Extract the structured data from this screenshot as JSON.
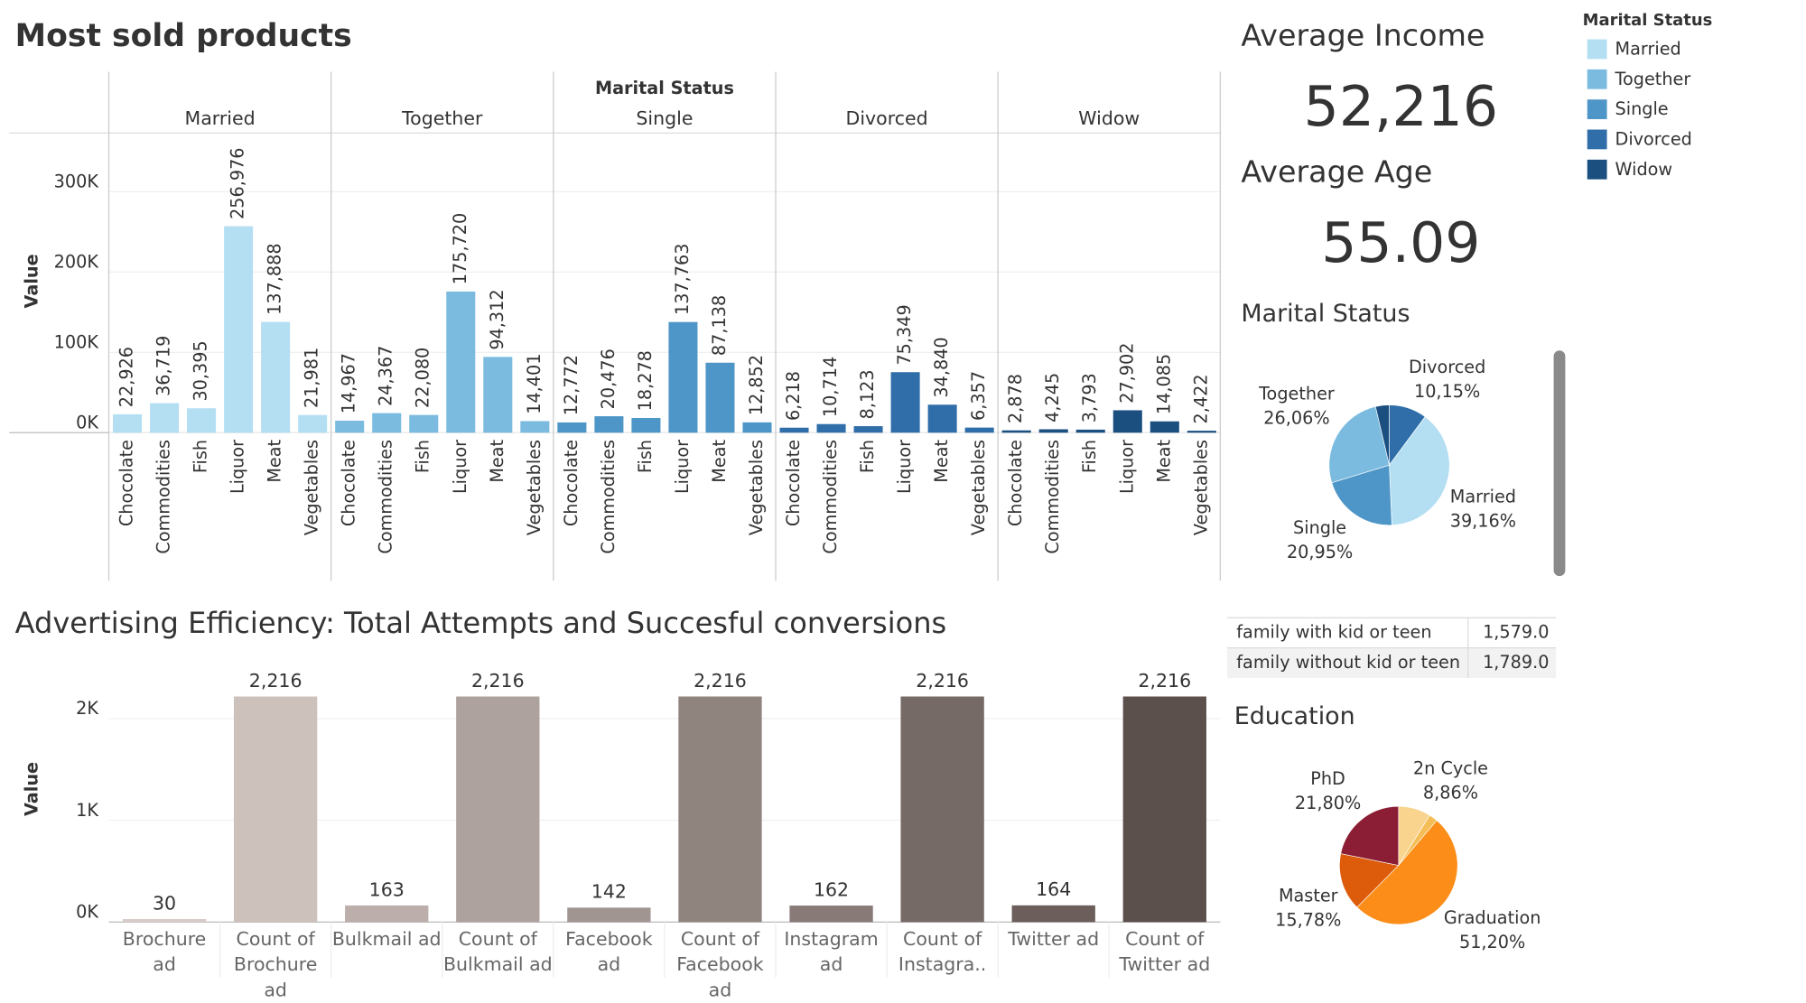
{
  "chart_data": [
    {
      "type": "bar",
      "title": "Most sold products",
      "y_label": "Value",
      "facet_title": "Marital Status",
      "legend_title": "Marital Status",
      "grid": true,
      "categories": [
        "Chocolate",
        "Commodities",
        "Fish",
        "Liquor",
        "Meat",
        "Vegetables"
      ],
      "ylim": [
        0,
        373000
      ],
      "yticks": [
        {
          "value": 0,
          "label": "0K"
        },
        {
          "value": 100000,
          "label": "100K"
        },
        {
          "value": 200000,
          "label": "200K"
        },
        {
          "value": 300000,
          "label": "300K"
        }
      ],
      "series": [
        {
          "name": "Married",
          "color": "#b4dff3",
          "values": [
            22926,
            36719,
            30395,
            256976,
            137888,
            21981
          ],
          "value_labels": [
            "22,926",
            "36,719",
            "30,395",
            "256,976",
            "137,888",
            "21,981"
          ]
        },
        {
          "name": "Together",
          "color": "#7bbbe0",
          "values": [
            14967,
            24367,
            22080,
            175720,
            94312,
            14401
          ],
          "value_labels": [
            "14,967",
            "24,367",
            "22,080",
            "175,720",
            "94,312",
            "14,401"
          ]
        },
        {
          "name": "Single",
          "color": "#4f96c8",
          "values": [
            12772,
            20476,
            18278,
            137763,
            87138,
            12852
          ],
          "value_labels": [
            "12,772",
            "20,476",
            "18,278",
            "137,763",
            "87,138",
            "12,852"
          ]
        },
        {
          "name": "Divorced",
          "color": "#2f6ea8",
          "values": [
            6218,
            10714,
            8123,
            75349,
            34840,
            6357
          ],
          "value_labels": [
            "6,218",
            "10,714",
            "8,123",
            "75,349",
            "34,840",
            "6,357"
          ]
        },
        {
          "name": "Widow",
          "color": "#1a4f80",
          "values": [
            2878,
            4245,
            3793,
            27902,
            14085,
            2422
          ],
          "value_labels": [
            "2,878",
            "4,245",
            "3,793",
            "27,902",
            "14,085",
            "2,422"
          ]
        }
      ]
    },
    {
      "type": "pie",
      "title": "Marital Status",
      "categories": [
        "Divorced",
        "Married",
        "Single",
        "Together",
        null
      ],
      "values": [
        10.15,
        39.16,
        20.95,
        26.06,
        3.68
      ],
      "value_labels": [
        "10,15%",
        "39,16%",
        "20,95%",
        "26,06%",
        null
      ],
      "colors": [
        "#2f6ea8",
        "#b4dff3",
        "#4f96c8",
        "#7bbbe0",
        "#1a4f80"
      ]
    },
    {
      "type": "bar",
      "title": "Advertising Efficiency: Total Attempts and Succesful conversions",
      "y_label": "Value",
      "categories": [
        "Brochure ad",
        "Count of Brochure ad",
        "Bulkmail ad",
        "Count of Bulkmail ad",
        "Facebook ad",
        "Count of Facebook ad",
        "Instagram ad",
        "Count of Instagra..",
        "Twitter ad",
        "Count of Twitter ad"
      ],
      "values": [
        30,
        2216,
        163,
        2216,
        142,
        2216,
        162,
        2216,
        164,
        2216
      ],
      "value_labels": [
        "30",
        "2,216",
        "163",
        "2,216",
        "142",
        "2,216",
        "162",
        "2,216",
        "164",
        "2,216"
      ],
      "colors": [
        "#d8ccc8",
        "#cdc1bc",
        "#bcafab",
        "#aea29f",
        "#a19591",
        "#90847f",
        "#877a77",
        "#766a67",
        "#6b5e5b",
        "#5c504d"
      ],
      "ylim": [
        0,
        2580
      ],
      "yticks": [
        {
          "value": 0,
          "label": "0K"
        },
        {
          "value": 1000,
          "label": "1K"
        },
        {
          "value": 2000,
          "label": "2K"
        }
      ],
      "grid": true
    },
    {
      "type": "pie",
      "title": "Education",
      "categories": [
        "2n Cycle",
        null,
        "Graduation",
        "Master",
        "PhD"
      ],
      "values": [
        8.86,
        2.36,
        51.2,
        15.78,
        21.8
      ],
      "value_labels": [
        "8,86%",
        null,
        "51,20%",
        "15,78%",
        "21,80%"
      ],
      "colors": [
        "#f9d48e",
        "#f5bd55",
        "#fb8d18",
        "#dc5c0c",
        "#8b1e35"
      ]
    }
  ],
  "kpis": [
    {
      "title": "Average Income",
      "value": "52,216"
    },
    {
      "title": "Average Age",
      "value": "55.09"
    }
  ],
  "table": {
    "rows": [
      [
        "family with kid or teen",
        "1,579.0"
      ],
      [
        "family without kid or teen",
        "1,789.0"
      ]
    ]
  }
}
